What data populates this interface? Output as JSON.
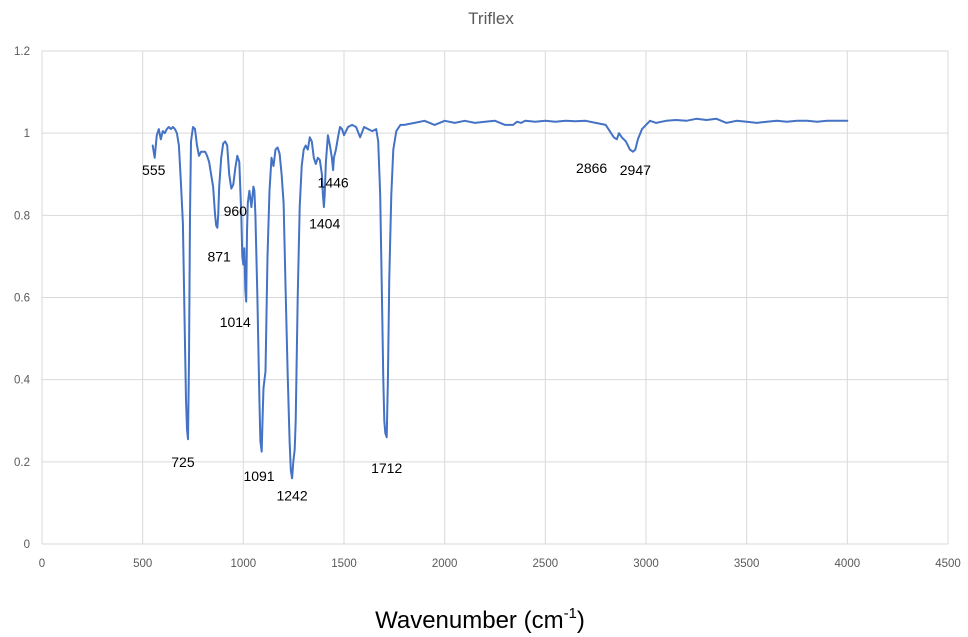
{
  "chart_data": {
    "type": "line",
    "title": "Triflex",
    "xlabel": {
      "prefix": "Wavenumber (cm",
      "superscript": "-1",
      "suffix": ")"
    },
    "ylabel": "",
    "xlim": [
      0,
      4500
    ],
    "ylim": [
      0,
      1.2
    ],
    "x_ticks": [
      0,
      500,
      1000,
      1500,
      2000,
      2500,
      3000,
      3500,
      4000,
      4500
    ],
    "y_ticks": [
      0,
      0.2,
      0.4,
      0.6,
      0.8,
      1,
      1.2
    ],
    "grid": true,
    "legend": "none",
    "colors": {
      "line": "#4472c4",
      "grid": "#d9d9d9",
      "text": "#595959"
    },
    "series": [
      {
        "x": [
          550,
          555,
          560,
          565,
          570,
          580,
          590,
          600,
          610,
          620,
          630,
          640,
          650,
          660,
          670,
          680,
          690,
          700,
          710,
          715,
          720,
          725,
          730,
          735,
          740,
          750,
          760,
          770,
          780,
          790,
          800,
          810,
          820,
          830,
          840,
          850,
          860,
          865,
          871,
          875,
          880,
          890,
          900,
          910,
          920,
          930,
          940,
          950,
          960,
          970,
          980,
          990,
          995,
          1000,
          1005,
          1010,
          1014,
          1018,
          1022,
          1030,
          1040,
          1050,
          1055,
          1060,
          1070,
          1080,
          1085,
          1091,
          1095,
          1100,
          1110,
          1120,
          1130,
          1140,
          1150,
          1160,
          1170,
          1180,
          1190,
          1200,
          1210,
          1220,
          1230,
          1236,
          1242,
          1248,
          1255,
          1260,
          1270,
          1280,
          1290,
          1300,
          1310,
          1320,
          1330,
          1340,
          1350,
          1360,
          1370,
          1380,
          1390,
          1395,
          1400,
          1404,
          1410,
          1420,
          1430,
          1440,
          1446,
          1450,
          1460,
          1470,
          1480,
          1490,
          1500,
          1520,
          1540,
          1560,
          1580,
          1600,
          1620,
          1640,
          1660,
          1670,
          1680,
          1690,
          1695,
          1700,
          1705,
          1712,
          1718,
          1725,
          1735,
          1745,
          1760,
          1780,
          1800,
          1850,
          1900,
          1950,
          2000,
          2050,
          2100,
          2150,
          2200,
          2250,
          2300,
          2340,
          2360,
          2380,
          2400,
          2450,
          2500,
          2550,
          2600,
          2650,
          2700,
          2750,
          2800,
          2840,
          2855,
          2866,
          2880,
          2900,
          2920,
          2935,
          2947,
          2960,
          2980,
          3000,
          3020,
          3050,
          3100,
          3150,
          3200,
          3250,
          3300,
          3350,
          3400,
          3450,
          3500,
          3550,
          3600,
          3650,
          3700,
          3750,
          3800,
          3850,
          3900,
          3950,
          4000
        ],
        "y": [
          0.97,
          0.955,
          0.94,
          0.97,
          0.995,
          1.01,
          0.985,
          1.005,
          1.0,
          1.01,
          1.015,
          1.01,
          1.015,
          1.01,
          1.0,
          0.97,
          0.88,
          0.78,
          0.5,
          0.35,
          0.28,
          0.255,
          0.45,
          0.8,
          0.98,
          1.015,
          1.01,
          0.97,
          0.945,
          0.955,
          0.955,
          0.955,
          0.945,
          0.93,
          0.9,
          0.87,
          0.8,
          0.775,
          0.77,
          0.8,
          0.87,
          0.94,
          0.975,
          0.98,
          0.97,
          0.9,
          0.865,
          0.875,
          0.915,
          0.945,
          0.93,
          0.8,
          0.7,
          0.68,
          0.72,
          0.62,
          0.59,
          0.76,
          0.83,
          0.86,
          0.82,
          0.87,
          0.86,
          0.8,
          0.6,
          0.35,
          0.25,
          0.225,
          0.3,
          0.38,
          0.42,
          0.7,
          0.86,
          0.94,
          0.92,
          0.96,
          0.965,
          0.95,
          0.9,
          0.83,
          0.62,
          0.42,
          0.25,
          0.18,
          0.16,
          0.2,
          0.23,
          0.3,
          0.6,
          0.82,
          0.92,
          0.96,
          0.97,
          0.96,
          0.99,
          0.98,
          0.94,
          0.925,
          0.94,
          0.935,
          0.9,
          0.85,
          0.82,
          0.85,
          0.93,
          0.995,
          0.97,
          0.94,
          0.91,
          0.94,
          0.96,
          0.99,
          1.015,
          1.01,
          0.995,
          1.015,
          1.02,
          1.015,
          0.99,
          1.015,
          1.01,
          1.005,
          1.01,
          0.98,
          0.85,
          0.55,
          0.4,
          0.3,
          0.27,
          0.26,
          0.4,
          0.65,
          0.85,
          0.96,
          1.005,
          1.02,
          1.02,
          1.025,
          1.03,
          1.02,
          1.03,
          1.025,
          1.03,
          1.025,
          1.028,
          1.03,
          1.02,
          1.02,
          1.028,
          1.025,
          1.03,
          1.028,
          1.03,
          1.028,
          1.03,
          1.029,
          1.03,
          1.025,
          1.02,
          0.99,
          0.985,
          1.0,
          0.99,
          0.98,
          0.96,
          0.955,
          0.96,
          0.985,
          1.01,
          1.02,
          1.03,
          1.025,
          1.03,
          1.032,
          1.03,
          1.035,
          1.032,
          1.035,
          1.025,
          1.03,
          1.028,
          1.025,
          1.028,
          1.03,
          1.028,
          1.03,
          1.03,
          1.028,
          1.03,
          1.03,
          1.03
        ]
      }
    ],
    "annotations": [
      {
        "text": "555",
        "x": 555,
        "y": 0.91
      },
      {
        "text": "725",
        "x": 700,
        "y": 0.2
      },
      {
        "text": "871",
        "x": 880,
        "y": 0.7
      },
      {
        "text": "960",
        "x": 960,
        "y": 0.81
      },
      {
        "text": "1014",
        "x": 960,
        "y": 0.54
      },
      {
        "text": "1091",
        "x": 1078,
        "y": 0.165
      },
      {
        "text": "1242",
        "x": 1242,
        "y": 0.118
      },
      {
        "text": "1404",
        "x": 1404,
        "y": 0.78
      },
      {
        "text": "1446",
        "x": 1446,
        "y": 0.88
      },
      {
        "text": "1712",
        "x": 1712,
        "y": 0.185
      },
      {
        "text": "2866",
        "x": 2730,
        "y": 0.915
      },
      {
        "text": "2947",
        "x": 2947,
        "y": 0.91
      }
    ]
  }
}
